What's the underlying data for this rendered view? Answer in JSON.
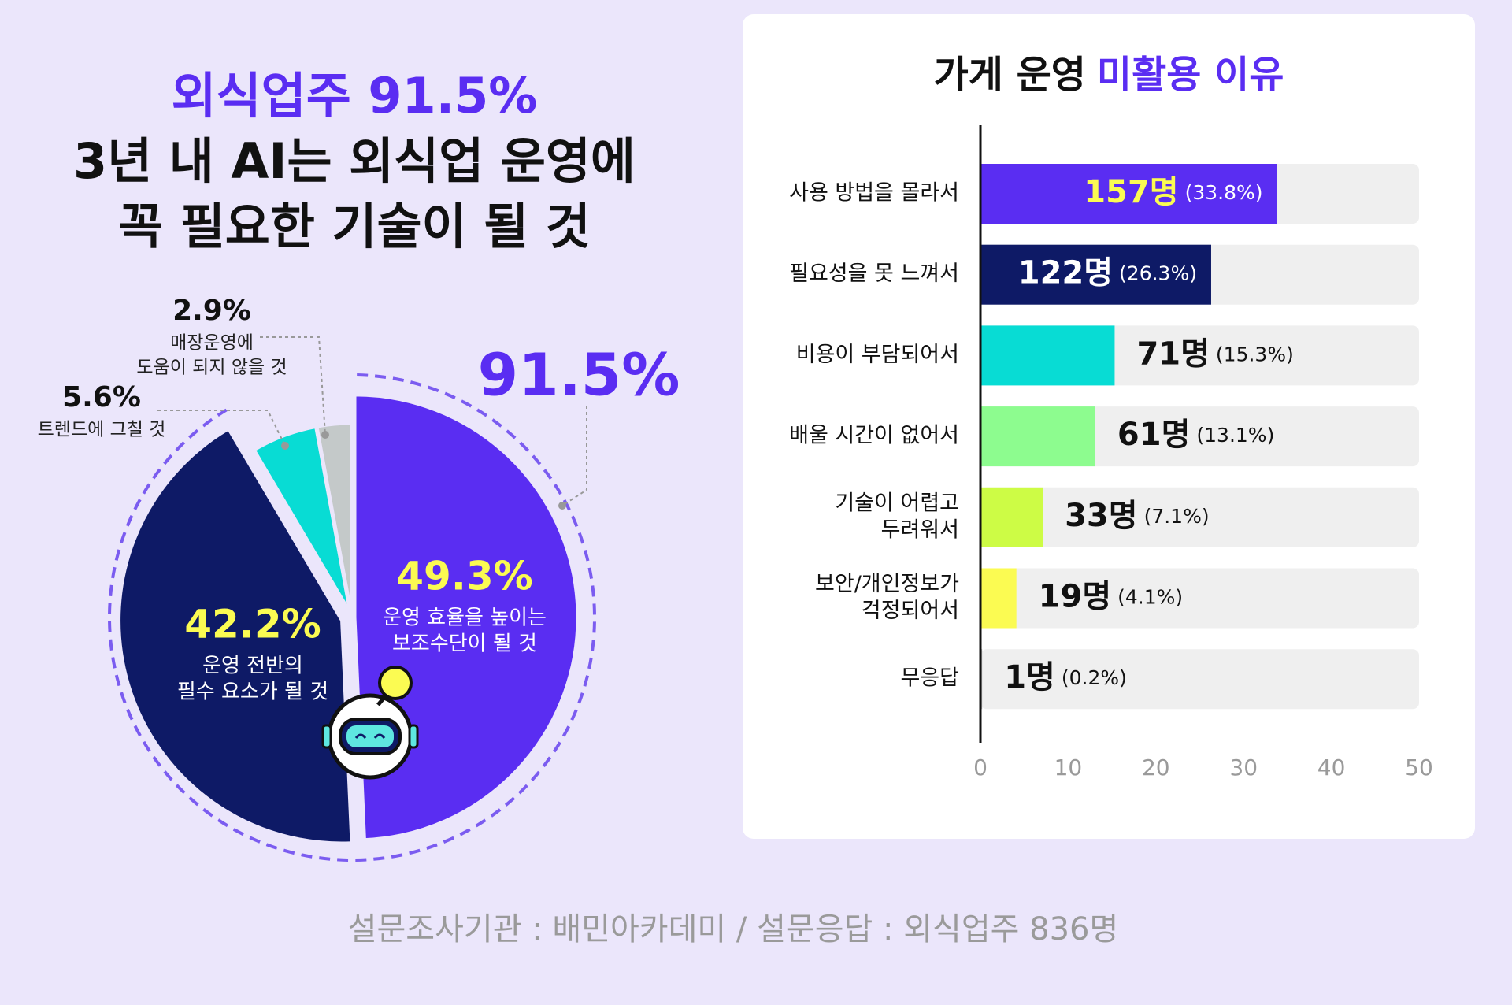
{
  "chart_data": [
    {
      "type": "pie",
      "title_lines": [
        "외식업주 91.5%",
        "3년 내 AI는 외식업 운영에",
        "꼭 필요한 기술이 될 것"
      ],
      "annotation": "91.5%",
      "categories": [
        [
          "운영 효율을 높이는",
          "보조수단이 될 것"
        ],
        [
          "운영 전반의",
          "필수 요소가 될 것"
        ],
        [
          "트렌드에 그칠 것"
        ],
        [
          "매장운영에",
          "도움이 되지 않을 것"
        ]
      ],
      "values": [
        49.3,
        42.2,
        5.6,
        2.9
      ],
      "value_labels": [
        "49.3%",
        "42.2%",
        "5.6%",
        "2.9%"
      ],
      "colors": [
        "#5a2df2",
        "#0e1a66",
        "#08dcd4",
        "#c4c9c9"
      ]
    },
    {
      "type": "barh",
      "title": [
        "가게 운영",
        "미활용 이유"
      ],
      "categories": [
        [
          "사용 방법을 몰라서"
        ],
        [
          "필요성을 못 느껴서"
        ],
        [
          "비용이 부담되어서"
        ],
        [
          "배울 시간이 없어서"
        ],
        [
          "기술이 어렵고",
          "두려워서"
        ],
        [
          "보안/개인정보가",
          "걱정되어서"
        ],
        [
          "무응답"
        ]
      ],
      "values": [
        33.8,
        26.3,
        15.3,
        13.1,
        7.1,
        4.1,
        0.2
      ],
      "value_labels": [
        "(33.8%)",
        "(26.3%)",
        "(15.3%)",
        "(13.1%)",
        "(7.1%)",
        "(4.1%)",
        "(0.2%)"
      ],
      "count_labels": [
        "157명",
        "122명",
        "71명",
        "61명",
        "33명",
        "19명",
        "1명"
      ],
      "colors": [
        "#5a2df2",
        "#0e1a66",
        "#08dcd4",
        "#8dfc8f",
        "#cdfc45",
        "#fbfb52",
        "#bdbdbd"
      ],
      "xlim": [
        0,
        50
      ],
      "xticks": [
        0,
        10,
        20,
        30,
        40,
        50
      ]
    }
  ],
  "footer": "설문조사기관 : 배민아카데미 / 설문응답 : 외식업주 836명"
}
